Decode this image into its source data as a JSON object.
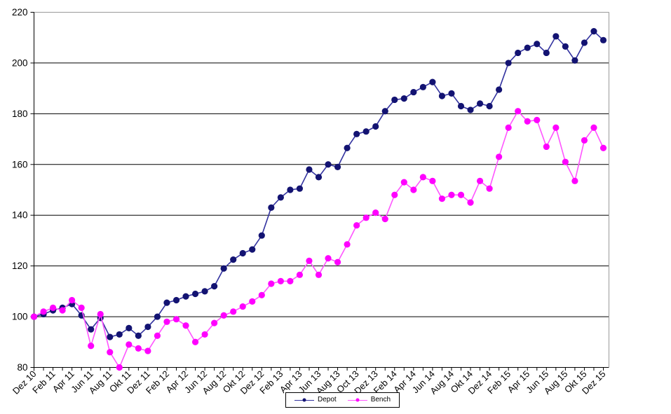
{
  "chart_data": {
    "type": "line",
    "title": "",
    "xlabel": "",
    "ylabel": "",
    "ylim": [
      80,
      220
    ],
    "yticks": [
      80,
      100,
      120,
      140,
      160,
      180,
      200,
      220
    ],
    "grid": "horizontal",
    "n_points": 61,
    "points_per_tick": 2,
    "x_tick_labels": [
      "Dez 10",
      "Feb 11",
      "Apr 11",
      "Jun 11",
      "Aug 11",
      "Okt 11",
      "Dez 11",
      "Feb 12",
      "Apr 12",
      "Jun 12",
      "Aug 12",
      "Okt 12",
      "Dez 12",
      "Feb 13",
      "Apr 13",
      "Jun 13",
      "Aug 13",
      "Oct 13",
      "Dez 13",
      "Feb 14",
      "Apr 14",
      "Jun 14",
      "Aug 14",
      "Okt 14",
      "Dez 14",
      "Feb 15",
      "Apr 15",
      "Jun 15",
      "Aug 15",
      "Okt 15",
      "Dez 15"
    ],
    "legend_position": "bottom-center",
    "colors": {
      "gridline": "#000000",
      "chart_border": "#999999",
      "axis": "#000000",
      "text": "#000000",
      "background": "#FFFFFF"
    },
    "series": [
      {
        "name": "Depot",
        "marker_color": "#131372",
        "line_color": "#3333A0",
        "values": [
          100,
          101,
          102.5,
          103.5,
          105,
          100.5,
          95,
          99.5,
          92,
          93,
          95.5,
          92.5,
          96,
          100,
          105.5,
          106.5,
          108,
          109,
          110,
          112,
          119,
          122.5,
          125,
          126.5,
          132,
          143,
          147,
          150,
          150.5,
          158,
          155,
          160,
          159,
          166.5,
          172,
          173,
          175,
          181,
          185.5,
          186,
          188.5,
          190.5,
          192.5,
          187,
          188,
          183,
          181.5,
          184,
          183,
          189.5,
          200,
          204,
          206,
          207.5,
          204,
          210.5,
          206.5,
          201,
          208,
          212.5,
          209
        ]
      },
      {
        "name": "Bench",
        "marker_color": "#FF00FF",
        "line_color": "#FF55FF",
        "values": [
          100,
          102,
          103.5,
          102.5,
          106.5,
          103.5,
          88.5,
          101,
          86,
          80,
          89,
          87.5,
          86.5,
          92.5,
          98,
          99,
          96.5,
          90,
          93,
          97.5,
          100.5,
          102,
          104,
          106,
          108.5,
          113,
          114,
          114,
          116.5,
          122,
          116.5,
          123,
          121.5,
          128.5,
          136,
          139,
          141,
          138.5,
          148,
          153,
          150,
          155,
          153.5,
          146.5,
          148,
          148,
          145,
          153.5,
          150.5,
          163,
          174.5,
          181,
          177,
          177.5,
          167,
          174.5,
          161,
          153.5,
          169.5,
          174.5,
          166.5
        ]
      }
    ]
  }
}
